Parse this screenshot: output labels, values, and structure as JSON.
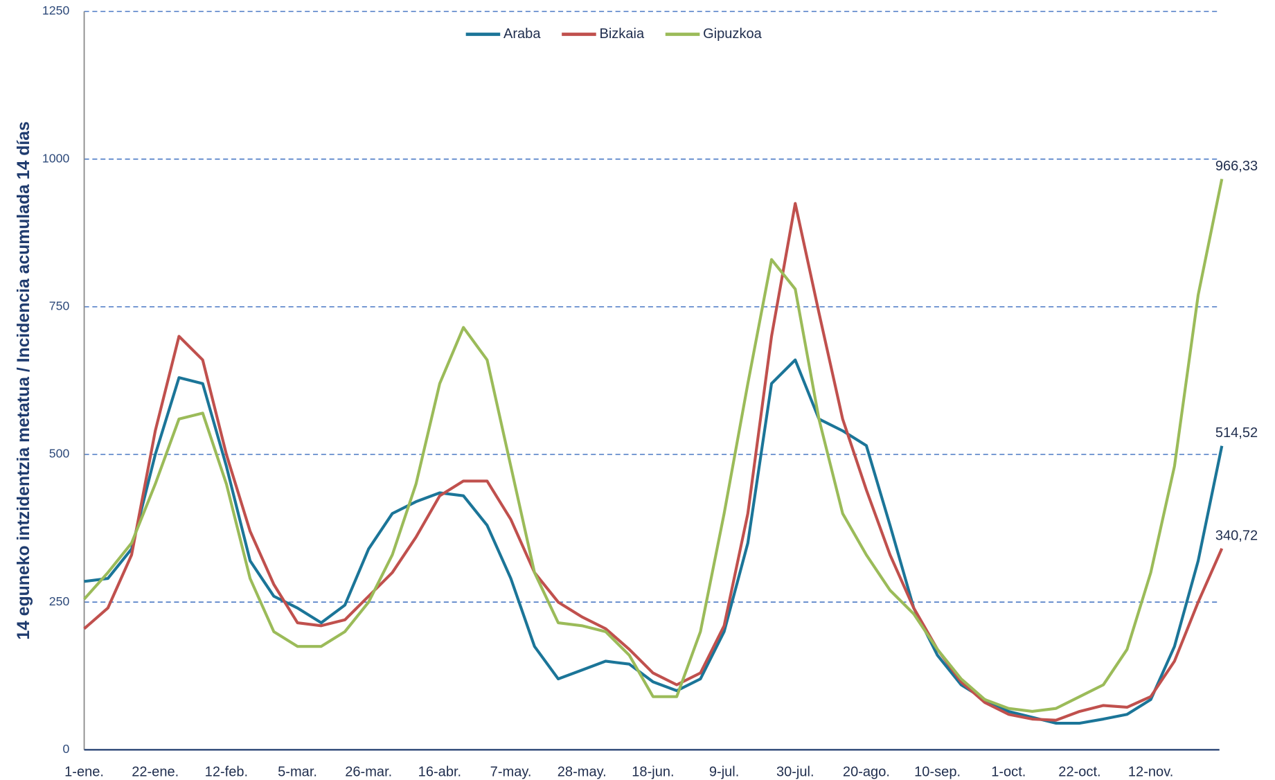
{
  "chart_data": {
    "type": "line",
    "y_label": "14 eguneko intzidentzia metatua / Incidencia acumulada 14 días",
    "categories": [
      "1-ene.",
      null,
      null,
      "22-ene.",
      null,
      null,
      "12-feb.",
      null,
      null,
      "5-mar.",
      null,
      null,
      "26-mar.",
      null,
      null,
      "16-abr.",
      null,
      null,
      "7-may.",
      null,
      null,
      "28-may.",
      null,
      null,
      "18-jun.",
      null,
      null,
      "9-jul.",
      null,
      null,
      "30-jul.",
      null,
      null,
      "20-ago.",
      null,
      null,
      "10-sep.",
      null,
      null,
      "1-oct.",
      null,
      null,
      "22-oct.",
      null,
      null,
      "12-nov.",
      null,
      null,
      null
    ],
    "series": [
      {
        "name": "Araba",
        "color": "#1b7598",
        "values": [
          285,
          290,
          340,
          500,
          630,
          620,
          480,
          320,
          260,
          240,
          215,
          245,
          340,
          400,
          420,
          435,
          430,
          380,
          290,
          175,
          120,
          135,
          150,
          145,
          115,
          100,
          120,
          200,
          350,
          620,
          660,
          560,
          540,
          515,
          380,
          240,
          160,
          110,
          85,
          65,
          55,
          45,
          45,
          52,
          60,
          85,
          175,
          320,
          514.52
        ],
        "value_labels": [
          null,
          null,
          null,
          null,
          null,
          null,
          null,
          null,
          null,
          null,
          null,
          null,
          null,
          null,
          null,
          null,
          null,
          null,
          null,
          null,
          null,
          null,
          null,
          null,
          null,
          null,
          null,
          null,
          null,
          null,
          null,
          null,
          null,
          null,
          null,
          null,
          null,
          null,
          null,
          null,
          null,
          null,
          null,
          null,
          null,
          null,
          null,
          null,
          "514,52"
        ]
      },
      {
        "name": "Bizkaia",
        "color": "#c0504d",
        "values": [
          205,
          240,
          330,
          540,
          700,
          660,
          500,
          370,
          280,
          215,
          210,
          220,
          260,
          300,
          360,
          430,
          455,
          455,
          390,
          300,
          250,
          225,
          205,
          170,
          130,
          110,
          130,
          210,
          400,
          700,
          925,
          740,
          560,
          440,
          330,
          240,
          170,
          115,
          80,
          60,
          52,
          50,
          65,
          75,
          72,
          90,
          150,
          250,
          340.72
        ],
        "value_labels": [
          null,
          null,
          null,
          null,
          null,
          null,
          null,
          null,
          null,
          null,
          null,
          null,
          null,
          null,
          null,
          null,
          null,
          null,
          null,
          null,
          null,
          null,
          null,
          null,
          null,
          null,
          null,
          null,
          null,
          null,
          null,
          null,
          null,
          null,
          null,
          null,
          null,
          null,
          null,
          null,
          null,
          null,
          null,
          null,
          null,
          null,
          null,
          null,
          "340,72"
        ]
      },
      {
        "name": "Gipuzkoa",
        "color": "#9bbb59",
        "values": [
          255,
          300,
          350,
          450,
          560,
          570,
          450,
          290,
          200,
          175,
          175,
          200,
          250,
          330,
          450,
          620,
          715,
          660,
          480,
          300,
          215,
          210,
          200,
          160,
          90,
          90,
          200,
          400,
          620,
          830,
          780,
          560,
          400,
          330,
          270,
          230,
          170,
          120,
          85,
          70,
          65,
          70,
          90,
          110,
          170,
          300,
          480,
          770,
          966.33
        ],
        "value_labels": [
          null,
          null,
          null,
          null,
          null,
          null,
          null,
          null,
          null,
          null,
          null,
          null,
          null,
          null,
          null,
          null,
          null,
          null,
          null,
          null,
          null,
          null,
          null,
          null,
          null,
          null,
          null,
          null,
          null,
          null,
          null,
          null,
          null,
          null,
          null,
          null,
          null,
          null,
          null,
          null,
          null,
          null,
          null,
          null,
          null,
          null,
          null,
          null,
          "966,33"
        ]
      }
    ],
    "ylim": [
      0,
      1250
    ],
    "yticks": [
      0,
      250,
      500,
      750,
      1000,
      1250
    ],
    "grid": true,
    "legend": "top"
  }
}
